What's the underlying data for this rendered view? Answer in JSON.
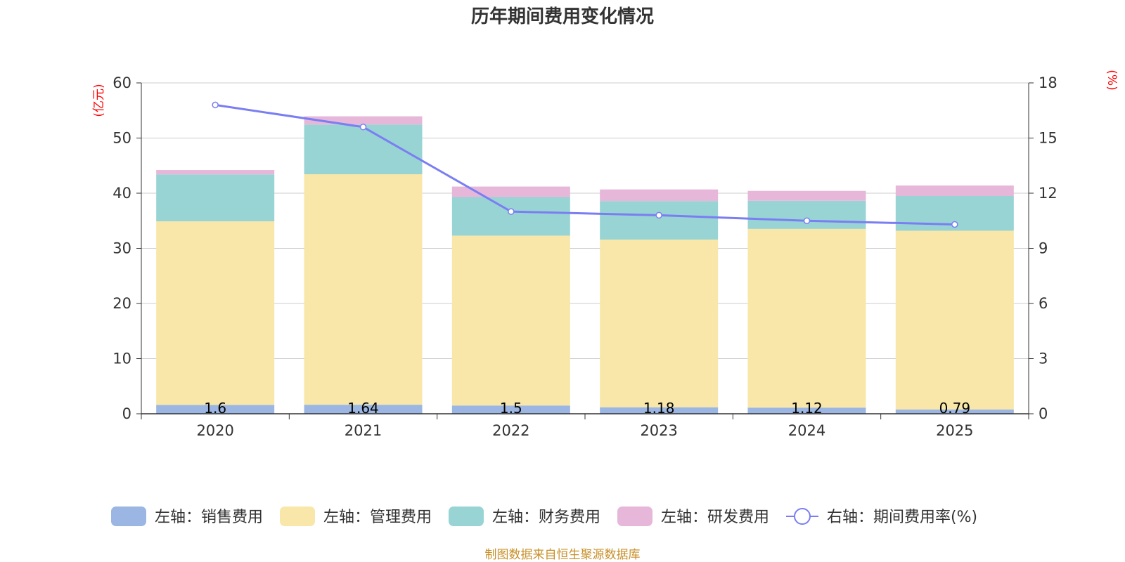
{
  "chart_data": {
    "type": "bar",
    "title": "历年期间费用变化情况",
    "categories": [
      "2020",
      "2021",
      "2022",
      "2023",
      "2024",
      "2025"
    ],
    "left_axis": {
      "unit": "(亿元)",
      "ylim": [
        0,
        60
      ],
      "ticks": [
        "0",
        "10",
        "20",
        "30",
        "40",
        "50",
        "60"
      ]
    },
    "right_axis": {
      "unit": "(%)",
      "ylim": [
        0,
        18
      ],
      "ticks": [
        "0",
        "3",
        "6",
        "9",
        "12",
        "15",
        "18"
      ]
    },
    "series": [
      {
        "name": "左轴：销售费用",
        "type": "bar",
        "stack": true,
        "color": "#9bb6e2",
        "values": [
          1.6,
          1.64,
          1.5,
          1.18,
          1.12,
          0.79
        ],
        "labels": [
          "1.6",
          "1.64",
          "1.5",
          "1.18",
          "1.12",
          "0.79"
        ]
      },
      {
        "name": "左轴：管理费用",
        "type": "bar",
        "stack": true,
        "color": "#f8e7a8",
        "values": [
          33.3,
          41.8,
          30.8,
          30.4,
          32.4,
          32.4
        ]
      },
      {
        "name": "左轴：财务费用",
        "type": "bar",
        "stack": true,
        "color": "#98d4d4",
        "values": [
          8.5,
          9.0,
          7.0,
          7.0,
          5.1,
          6.3
        ]
      },
      {
        "name": "左轴：研发费用",
        "type": "bar",
        "stack": true,
        "color": "#e7b7da",
        "values": [
          0.8,
          1.5,
          1.9,
          2.1,
          1.8,
          1.9
        ]
      },
      {
        "name": "右轴：期间费用率(%)",
        "type": "line",
        "axis": "right",
        "color": "#7a7ef2",
        "values": [
          16.8,
          15.6,
          11.0,
          10.8,
          10.5,
          10.3
        ]
      }
    ],
    "grid": true,
    "legend_position": "bottom"
  },
  "source_text": "制图数据来自恒生聚源数据库",
  "colors": {
    "source": "#c8902a",
    "axis_unit": "#ff0000"
  }
}
